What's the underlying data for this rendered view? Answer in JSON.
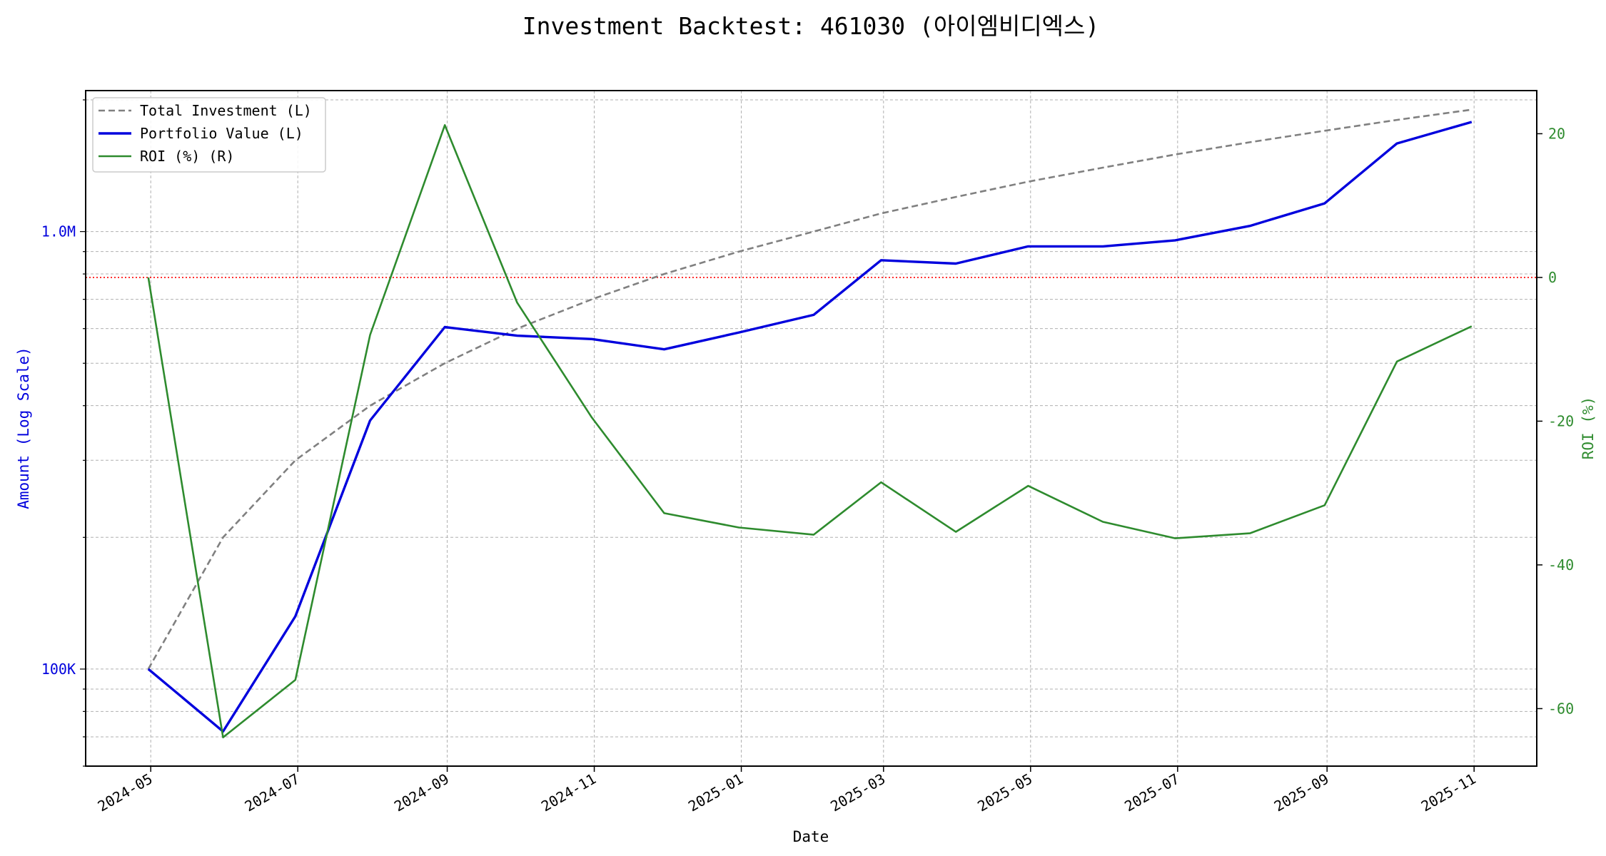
{
  "chart_data": {
    "type": "line",
    "title": "Investment Backtest: 461030 (아이엠비디엑스)",
    "xlabel": "Date",
    "ylabel_left": "Amount (Log Scale)",
    "ylabel_right": "ROI (%)",
    "y_left_scale": "log",
    "y_left_range": [
      60000,
      2100000
    ],
    "y_right_range": [
      -68,
      26
    ],
    "x_range": [
      "2024-04-04",
      "2025-11-27"
    ],
    "grid": true,
    "legend_position": "top-left",
    "x_ticks": [
      "2024-05",
      "2024-07",
      "2024-09",
      "2024-11",
      "2025-01",
      "2025-03",
      "2025-05",
      "2025-07",
      "2025-09",
      "2025-11"
    ],
    "y_left_ticks": [
      {
        "value": 100000,
        "label": "100K"
      },
      {
        "value": 1000000,
        "label": "1.0M"
      }
    ],
    "y_right_ticks": [
      20,
      0,
      -20,
      -40,
      -60
    ],
    "reference_line": {
      "axis": "right",
      "value": 0,
      "color": "#ff0000",
      "style": "dotted"
    },
    "x": [
      "2024-04-30",
      "2024-05-31",
      "2024-06-30",
      "2024-07-31",
      "2024-08-31",
      "2024-09-30",
      "2024-10-31",
      "2024-11-30",
      "2024-12-31",
      "2025-01-31",
      "2025-02-28",
      "2025-03-31",
      "2025-04-30",
      "2025-05-31",
      "2025-06-30",
      "2025-07-31",
      "2025-08-31",
      "2025-09-30",
      "2025-10-31"
    ],
    "series": [
      {
        "name": "Total Investment (L)",
        "axis": "left",
        "color": "#808080",
        "style": "dashed",
        "values": [
          100000,
          200000,
          300000,
          400000,
          500000,
          600000,
          700000,
          800000,
          900000,
          1000000,
          1100000,
          1200000,
          1300000,
          1400000,
          1500000,
          1600000,
          1700000,
          1800000,
          1900000
        ]
      },
      {
        "name": "Portfolio Value (L)",
        "axis": "left",
        "color": "#0000dd",
        "style": "solid",
        "values": [
          100000,
          72000,
          132000,
          370000,
          605000,
          578000,
          568000,
          538000,
          588000,
          645000,
          860000,
          845000,
          925000,
          925000,
          955000,
          1030000,
          1160000,
          1590000,
          1780000
        ]
      },
      {
        "name": "ROI (%) (R)",
        "axis": "right",
        "color": "#2e8b2e",
        "style": "solid",
        "values": [
          0.0,
          -64.0,
          -56.0,
          -8.0,
          21.2,
          -3.5,
          -19.5,
          -32.8,
          -34.8,
          -35.8,
          -28.5,
          -35.4,
          -29.0,
          -34.0,
          -36.3,
          -35.6,
          -31.7,
          -11.7,
          -6.8
        ]
      }
    ]
  }
}
